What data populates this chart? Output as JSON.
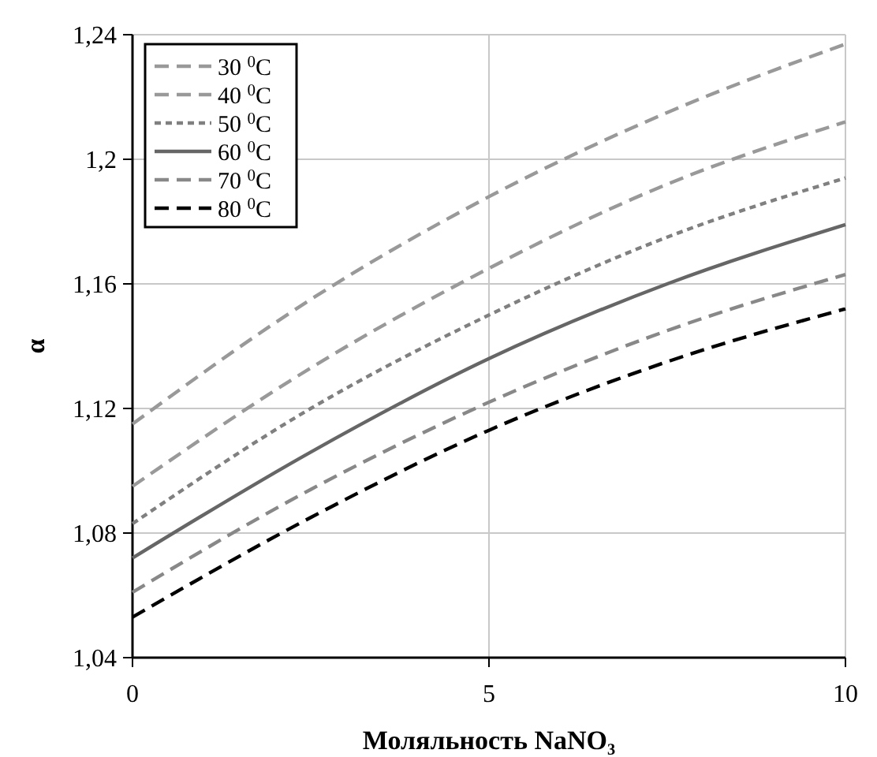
{
  "chart_data": {
    "type": "line",
    "xlabel": "Моляльность NaNO₃",
    "ylabel": "α",
    "x": [
      0,
      2.5,
      5,
      7.5,
      10
    ],
    "series": [
      {
        "name": "30 $^{0}$C",
        "color": "#999999",
        "line_style": "dashed",
        "values": [
          1.115,
          1.155,
          1.188,
          1.215,
          1.237
        ]
      },
      {
        "name": "40 $^{0}$C",
        "color": "#999999",
        "line_style": "dashed",
        "values": [
          1.095,
          1.133,
          1.165,
          1.192,
          1.212
        ]
      },
      {
        "name": "50 $^{0}$C",
        "color": "#808080",
        "line_style": "dotted",
        "values": [
          1.083,
          1.12,
          1.15,
          1.175,
          1.194
        ]
      },
      {
        "name": "60 $^{0}$C",
        "color": "#666666",
        "line_style": "solid",
        "values": [
          1.072,
          1.106,
          1.136,
          1.16,
          1.179
        ]
      },
      {
        "name": "70 $^{0}$C",
        "color": "#888888",
        "line_style": "dashed",
        "values": [
          1.061,
          1.094,
          1.122,
          1.145,
          1.163
        ]
      },
      {
        "name": "80 $^{0}$C",
        "color": "#000000",
        "line_style": "dashed",
        "values": [
          1.053,
          1.085,
          1.113,
          1.135,
          1.152
        ]
      }
    ],
    "xlim": [
      0,
      10
    ],
    "xticks": [
      0,
      5,
      10
    ],
    "ylim": [
      1.04,
      1.24
    ],
    "yticks": [
      {
        "value": 1.04,
        "label": "1,04"
      },
      {
        "value": 1.08,
        "label": "1,08"
      },
      {
        "value": 1.12,
        "label": "1,12"
      },
      {
        "value": 1.16,
        "label": "1,16"
      },
      {
        "value": 1.2,
        "label": "1,2"
      },
      {
        "value": 1.24,
        "label": "1,24"
      }
    ],
    "grid": true,
    "legend": "top left",
    "marker": "none"
  }
}
